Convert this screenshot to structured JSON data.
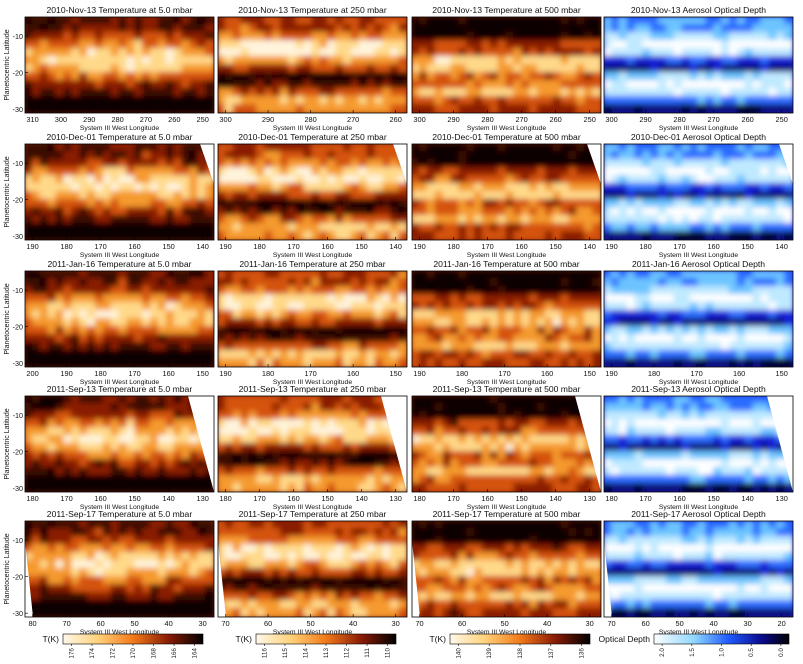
{
  "figure": {
    "y_axis_label": "Planetocentric Latitude",
    "x_axis_label": "System III West Longitude",
    "lat_ticks": [
      -10,
      -20,
      -30
    ],
    "rows": [
      {
        "date": "2010-Nov-13",
        "titles": [
          "2010-Nov-13 Temperature at 5.0 mbar",
          "2010-Nov-13 Temperature at 250 mbar",
          "2010-Nov-13 Temperature at 500 mbar",
          "2010-Nov-13 Aerosol Optical Depth"
        ],
        "x_ticks": [
          [
            "310",
            "300",
            "290",
            "280",
            "270",
            "260",
            "250"
          ],
          [
            "300",
            "290",
            "280",
            "270",
            "260"
          ],
          [
            "300",
            "290",
            "280",
            "270",
            "260",
            "250"
          ],
          [
            "300",
            "290",
            "280",
            "270",
            "260",
            "250"
          ]
        ]
      },
      {
        "date": "2010-Dec-01",
        "titles": [
          "2010-Dec-01 Temperature at 5.0 mbar",
          "2010-Dec-01 Temperature at 250 mbar",
          "2010-Dec-01 Temperature at 500 mbar",
          "2010-Dec-01 Aerosol Optical Depth"
        ],
        "x_ticks": [
          [
            "190",
            "180",
            "170",
            "160",
            "150",
            "140"
          ],
          [
            "190",
            "180",
            "170",
            "160",
            "150",
            "140"
          ],
          [
            "190",
            "180",
            "170",
            "160",
            "150",
            "140"
          ],
          [
            "190",
            "180",
            "170",
            "160",
            "150",
            "140"
          ]
        ]
      },
      {
        "date": "2011-Jan-16",
        "titles": [
          "2011-Jan-16 Temperature at 5.0 mbar",
          "2011-Jan-16 Temperature at 250 mbar",
          "2011-Jan-16 Temperature at 500 mbar",
          "2011-Jan-16 Aerosol Optical Depth"
        ],
        "x_ticks": [
          [
            "200",
            "190",
            "180",
            "170",
            "160",
            "150"
          ],
          [
            "190",
            "180",
            "170",
            "160",
            "150"
          ],
          [
            "190",
            "180",
            "170",
            "160",
            "150"
          ],
          [
            "190",
            "180",
            "170",
            "160",
            "150"
          ]
        ]
      },
      {
        "date": "2011-Sep-13",
        "titles": [
          "2011-Sep-13 Temperature at 5.0 mbar",
          "2011-Sep-13 Temperature at 250 mbar",
          "2011-Sep-13 Temperature at 500 mbar",
          "2011-Sep-13 Aerosol Optical Depth"
        ],
        "x_ticks": [
          [
            "180",
            "170",
            "160",
            "150",
            "140",
            "130"
          ],
          [
            "180",
            "170",
            "160",
            "150",
            "140",
            "130"
          ],
          [
            "180",
            "170",
            "160",
            "150",
            "140",
            "130"
          ],
          [
            "180",
            "170",
            "160",
            "150",
            "140",
            "130"
          ]
        ]
      },
      {
        "date": "2011-Sep-17",
        "titles": [
          "2011-Sep-17 Temperature at 5.0 mbar",
          "2011-Sep-17 Temperature at 250 mbar",
          "2011-Sep-17 Temperature at 500 mbar",
          "2011-Sep-17 Aerosol Optical Depth"
        ],
        "x_ticks": [
          [
            "80",
            "70",
            "60",
            "50",
            "40",
            "30"
          ],
          [
            "70",
            "60",
            "50",
            "40",
            "30"
          ],
          [
            "70",
            "60",
            "50",
            "40",
            "30"
          ],
          [
            "70",
            "60",
            "50",
            "40",
            "30",
            "20"
          ]
        ]
      }
    ],
    "colorbars": [
      {
        "label": "T(K)",
        "ticks": [
          "176",
          "174",
          "172",
          "170",
          "168",
          "166",
          "164"
        ],
        "colormap": "hot",
        "low_color": "#fff5e6",
        "high_color": "#000000"
      },
      {
        "label": "T(K)",
        "ticks": [
          "116",
          "115",
          "114",
          "113",
          "112",
          "111",
          "110"
        ],
        "colormap": "hot",
        "low_color": "#fff5e6",
        "high_color": "#000000"
      },
      {
        "label": "T(K)",
        "ticks": [
          "140",
          "139",
          "138",
          "137",
          "136"
        ],
        "colormap": "hot",
        "low_color": "#fff5e6",
        "high_color": "#000000"
      },
      {
        "label": "Optical Depth",
        "ticks": [
          "2.0",
          "1.5",
          "1.0",
          "0.5",
          "0.0"
        ],
        "colormap": "blues",
        "low_color": "#ffffff",
        "high_color": "#000000"
      }
    ]
  }
}
